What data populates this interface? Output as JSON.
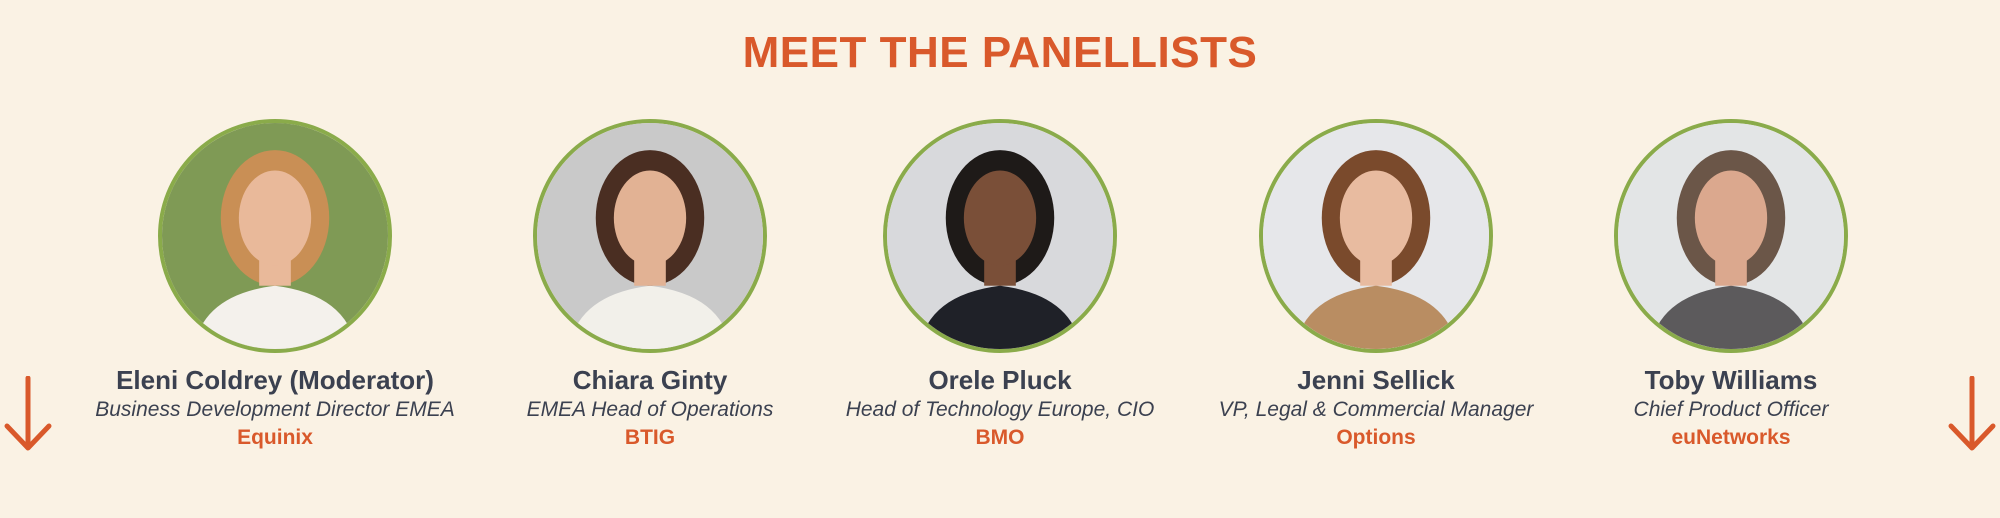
{
  "title": "MEET THE PANELLISTS",
  "colors": {
    "background": "#faf2e4",
    "accent": "#d9592b",
    "text": "#3b4150",
    "ring": "#8aab4a"
  },
  "panellists": [
    {
      "name": "Eleni Coldrey (Moderator)",
      "role": "Business Development Director EMEA",
      "company": "Equinix",
      "bg": "#7f9a55",
      "hair": "#c98f55",
      "skin": "#e9b99a",
      "top": "#f4f1ec"
    },
    {
      "name": "Chiara Ginty",
      "role": "EMEA Head of Operations",
      "company": "BTIG",
      "bg": "#c9c9c9",
      "hair": "#4a2e22",
      "skin": "#e2b294",
      "top": "#f2f0ea"
    },
    {
      "name": "Orele Pluck",
      "role": "Head of Technology Europe, CIO",
      "company": "BMO",
      "bg": "#d8d9dc",
      "hair": "#1e1a18",
      "skin": "#7a4f38",
      "top": "#1f2128"
    },
    {
      "name": "Jenni Sellick",
      "role": "VP, Legal & Commercial Manager",
      "company": "Options",
      "bg": "#e6e7ea",
      "hair": "#7a4a2c",
      "skin": "#e8bba0",
      "top": "#b98d62"
    },
    {
      "name": "Toby Williams",
      "role": "Chief Product Officer",
      "company": "euNetworks",
      "bg": "#e3e5e6",
      "hair": "#6b5648",
      "skin": "#dba88e",
      "top": "#5c5a5c"
    }
  ],
  "icons": {
    "left": "arrow-down-icon",
    "right": "arrow-down-icon"
  }
}
